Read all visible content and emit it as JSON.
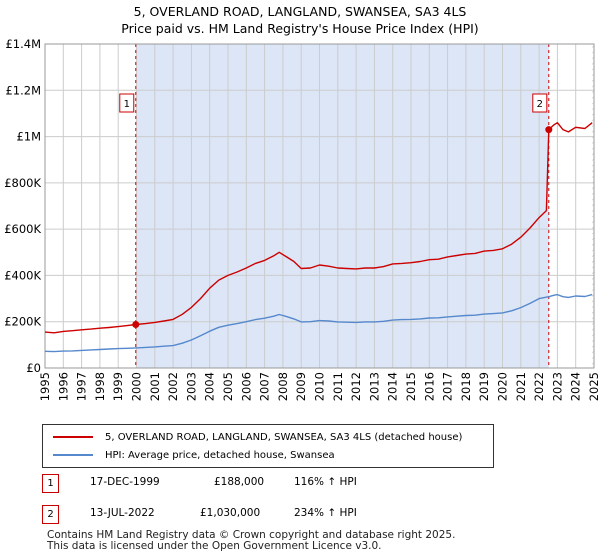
{
  "title": {
    "line1": "5, OVERLAND ROAD, LANGLAND, SWANSEA, SA3 4LS",
    "line2": "Price paid vs. HM Land Registry's House Price Index (HPI)"
  },
  "chart_data": {
    "type": "line",
    "x_range": [
      1995,
      2025
    ],
    "ylim": [
      0,
      1400000
    ],
    "y_ticks": [
      {
        "value": 0,
        "label": "£0"
      },
      {
        "value": 200000,
        "label": "£200K"
      },
      {
        "value": 400000,
        "label": "£400K"
      },
      {
        "value": 600000,
        "label": "£600K"
      },
      {
        "value": 800000,
        "label": "£800K"
      },
      {
        "value": 1000000,
        "label": "£1M"
      },
      {
        "value": 1200000,
        "label": "£1.2M"
      },
      {
        "value": 1400000,
        "label": "£1.4M"
      }
    ],
    "x_ticks": [
      "1995",
      "1996",
      "1997",
      "1998",
      "1999",
      "2000",
      "2001",
      "2002",
      "2003",
      "2004",
      "2005",
      "2006",
      "2007",
      "2008",
      "2009",
      "2010",
      "2011",
      "2012",
      "2013",
      "2014",
      "2015",
      "2016",
      "2017",
      "2018",
      "2019",
      "2020",
      "2021",
      "2022",
      "2023",
      "2024",
      "2025"
    ],
    "grid": true,
    "shaded_region": {
      "start": 1999.96,
      "end": 2022.53,
      "color": "#dce6f7"
    },
    "series": [
      {
        "name": "5, OVERLAND ROAD, LANGLAND, SWANSEA, SA3 4LS (detached house)",
        "color": "#cc0000",
        "points": [
          [
            1995.0,
            155000
          ],
          [
            1995.5,
            152000
          ],
          [
            1996.0,
            158000
          ],
          [
            1996.5,
            161000
          ],
          [
            1997.0,
            165000
          ],
          [
            1997.5,
            168000
          ],
          [
            1998.0,
            172000
          ],
          [
            1998.5,
            175000
          ],
          [
            1999.0,
            179000
          ],
          [
            1999.5,
            183000
          ],
          [
            1999.96,
            188000
          ],
          [
            2000.5,
            192000
          ],
          [
            2001.0,
            197000
          ],
          [
            2001.5,
            203000
          ],
          [
            2002.0,
            210000
          ],
          [
            2002.5,
            232000
          ],
          [
            2003.0,
            262000
          ],
          [
            2003.5,
            300000
          ],
          [
            2004.0,
            345000
          ],
          [
            2004.5,
            380000
          ],
          [
            2005.0,
            400000
          ],
          [
            2005.5,
            415000
          ],
          [
            2006.0,
            432000
          ],
          [
            2006.5,
            452000
          ],
          [
            2007.0,
            465000
          ],
          [
            2007.5,
            485000
          ],
          [
            2007.8,
            500000
          ],
          [
            2008.2,
            480000
          ],
          [
            2008.6,
            460000
          ],
          [
            2009.0,
            430000
          ],
          [
            2009.5,
            432000
          ],
          [
            2010.0,
            445000
          ],
          [
            2010.5,
            440000
          ],
          [
            2011.0,
            432000
          ],
          [
            2011.5,
            430000
          ],
          [
            2012.0,
            428000
          ],
          [
            2012.5,
            432000
          ],
          [
            2013.0,
            432000
          ],
          [
            2013.5,
            438000
          ],
          [
            2014.0,
            450000
          ],
          [
            2014.5,
            452000
          ],
          [
            2015.0,
            455000
          ],
          [
            2015.5,
            460000
          ],
          [
            2016.0,
            468000
          ],
          [
            2016.5,
            470000
          ],
          [
            2017.0,
            480000
          ],
          [
            2017.5,
            486000
          ],
          [
            2018.0,
            492000
          ],
          [
            2018.5,
            495000
          ],
          [
            2019.0,
            505000
          ],
          [
            2019.5,
            508000
          ],
          [
            2020.0,
            515000
          ],
          [
            2020.5,
            535000
          ],
          [
            2021.0,
            565000
          ],
          [
            2021.5,
            605000
          ],
          [
            2022.0,
            650000
          ],
          [
            2022.4,
            680000
          ],
          [
            2022.53,
            1030000
          ],
          [
            2022.8,
            1050000
          ],
          [
            2023.0,
            1060000
          ],
          [
            2023.3,
            1030000
          ],
          [
            2023.6,
            1020000
          ],
          [
            2024.0,
            1040000
          ],
          [
            2024.5,
            1035000
          ],
          [
            2024.9,
            1060000
          ]
        ]
      },
      {
        "name": "HPI: Average price, detached house, Swansea",
        "color": "#5588cc",
        "points": [
          [
            1995.0,
            72000
          ],
          [
            1995.5,
            71000
          ],
          [
            1996.0,
            73000
          ],
          [
            1996.5,
            74000
          ],
          [
            1997.0,
            76000
          ],
          [
            1997.5,
            78000
          ],
          [
            1998.0,
            80000
          ],
          [
            1998.5,
            82000
          ],
          [
            1999.0,
            84000
          ],
          [
            1999.5,
            85000
          ],
          [
            2000.0,
            87000
          ],
          [
            2000.5,
            89000
          ],
          [
            2001.0,
            91000
          ],
          [
            2001.5,
            94000
          ],
          [
            2002.0,
            97000
          ],
          [
            2002.5,
            107000
          ],
          [
            2003.0,
            121000
          ],
          [
            2003.5,
            139000
          ],
          [
            2004.0,
            159000
          ],
          [
            2004.5,
            176000
          ],
          [
            2005.0,
            185000
          ],
          [
            2005.5,
            192000
          ],
          [
            2006.0,
            200000
          ],
          [
            2006.5,
            209000
          ],
          [
            2007.0,
            215000
          ],
          [
            2007.5,
            224000
          ],
          [
            2007.8,
            231000
          ],
          [
            2008.2,
            222000
          ],
          [
            2008.6,
            212000
          ],
          [
            2009.0,
            199000
          ],
          [
            2009.5,
            200000
          ],
          [
            2010.0,
            205000
          ],
          [
            2010.5,
            203000
          ],
          [
            2011.0,
            199000
          ],
          [
            2011.5,
            198000
          ],
          [
            2012.0,
            197000
          ],
          [
            2012.5,
            199000
          ],
          [
            2013.0,
            199000
          ],
          [
            2013.5,
            202000
          ],
          [
            2014.0,
            207000
          ],
          [
            2014.5,
            209000
          ],
          [
            2015.0,
            210000
          ],
          [
            2015.5,
            212000
          ],
          [
            2016.0,
            216000
          ],
          [
            2016.5,
            217000
          ],
          [
            2017.0,
            221000
          ],
          [
            2017.5,
            224000
          ],
          [
            2018.0,
            227000
          ],
          [
            2018.5,
            228000
          ],
          [
            2019.0,
            233000
          ],
          [
            2019.5,
            235000
          ],
          [
            2020.0,
            238000
          ],
          [
            2020.5,
            247000
          ],
          [
            2021.0,
            261000
          ],
          [
            2021.5,
            279000
          ],
          [
            2022.0,
            300000
          ],
          [
            2022.53,
            308000
          ],
          [
            2022.8,
            314000
          ],
          [
            2023.0,
            317000
          ],
          [
            2023.3,
            308000
          ],
          [
            2023.6,
            305000
          ],
          [
            2024.0,
            311000
          ],
          [
            2024.5,
            309000
          ],
          [
            2024.9,
            317000
          ]
        ]
      }
    ],
    "sales": [
      {
        "label": "1",
        "x": 1999.96,
        "y": 188000
      },
      {
        "label": "2",
        "x": 2022.53,
        "y": 1030000
      }
    ]
  },
  "legend": {
    "items": [
      {
        "label": "5, OVERLAND ROAD, LANGLAND, SWANSEA, SA3 4LS (detached house)",
        "color": "#cc0000"
      },
      {
        "label": "HPI: Average price, detached house, Swansea",
        "color": "#5588cc"
      }
    ]
  },
  "transactions": [
    {
      "num": "1",
      "date": "17-DEC-1999",
      "price": "£188,000",
      "hpi": "116% ↑ HPI"
    },
    {
      "num": "2",
      "date": "13-JUL-2022",
      "price": "£1,030,000",
      "hpi": "234% ↑ HPI"
    }
  ],
  "footer": {
    "line1": "Contains HM Land Registry data © Crown copyright and database right 2025.",
    "line2": "This data is licensed under the Open Government Licence v3.0."
  }
}
